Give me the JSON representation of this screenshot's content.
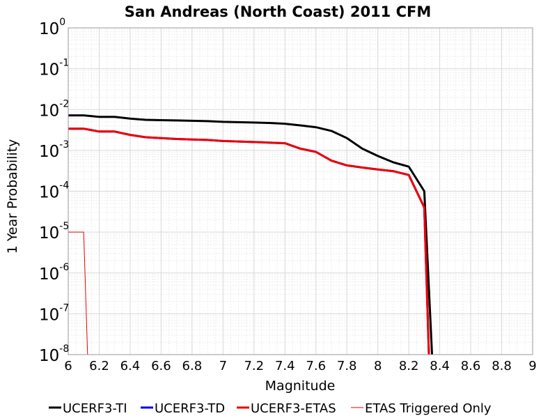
{
  "chart_data": {
    "type": "line",
    "title": "San Andreas (North Coast) 2011 CFM",
    "xlabel": "Magnitude",
    "ylabel": "1 Year Probability",
    "xlim": [
      6,
      9
    ],
    "ylim": [
      1e-08,
      1
    ],
    "yscale": "log",
    "grid": true,
    "legend_position": "bottom",
    "xticks": [
      "6",
      "6.2",
      "6.4",
      "6.6",
      "6.8",
      "7",
      "7.2",
      "7.4",
      "7.6",
      "7.8",
      "8",
      "8.2",
      "8.4",
      "8.6",
      "8.8",
      "9"
    ],
    "yticks": [
      {
        "base": "10",
        "exp": "0"
      },
      {
        "base": "10",
        "exp": "-1"
      },
      {
        "base": "10",
        "exp": "-2"
      },
      {
        "base": "10",
        "exp": "-3"
      },
      {
        "base": "10",
        "exp": "-4"
      },
      {
        "base": "10",
        "exp": "-5"
      },
      {
        "base": "10",
        "exp": "-6"
      },
      {
        "base": "10",
        "exp": "-7"
      },
      {
        "base": "10",
        "exp": "-8"
      }
    ],
    "series": [
      {
        "name": "UCERF3-TI",
        "color": "#000000",
        "width": 3,
        "x": [
          6.0,
          6.1,
          6.2,
          6.3,
          6.4,
          6.5,
          6.6,
          6.7,
          6.8,
          6.9,
          7.0,
          7.1,
          7.2,
          7.3,
          7.4,
          7.5,
          7.6,
          7.7,
          7.8,
          7.9,
          8.0,
          8.1,
          8.2,
          8.3,
          8.35
        ],
        "y": [
          0.0072,
          0.0072,
          0.0066,
          0.0066,
          0.006,
          0.0056,
          0.0055,
          0.0054,
          0.0053,
          0.0052,
          0.005,
          0.0049,
          0.0048,
          0.0047,
          0.0045,
          0.0041,
          0.0037,
          0.003,
          0.002,
          0.0011,
          0.00073,
          0.00051,
          0.0004,
          0.0001,
          1e-08
        ]
      },
      {
        "name": "UCERF3-TD",
        "color": "#0000ee",
        "width": 3,
        "x": [
          6.0,
          6.1,
          6.2,
          6.3,
          6.4,
          6.5,
          6.6,
          6.7,
          6.8,
          6.9,
          7.0,
          7.1,
          7.2,
          7.3,
          7.4,
          7.5,
          7.6,
          7.7,
          7.8,
          7.9,
          8.0,
          8.1,
          8.2,
          8.3,
          8.33
        ],
        "y": [
          0.0034,
          0.0034,
          0.0029,
          0.0029,
          0.0024,
          0.0021,
          0.002,
          0.0019,
          0.00185,
          0.0018,
          0.0017,
          0.00165,
          0.0016,
          0.00155,
          0.0015,
          0.0011,
          0.00092,
          0.00056,
          0.00043,
          0.00038,
          0.00034,
          0.00031,
          0.00025,
          4e-05,
          1e-08
        ]
      },
      {
        "name": "UCERF3-ETAS",
        "color": "#ee0000",
        "width": 3,
        "x": [
          6.0,
          6.1,
          6.2,
          6.3,
          6.4,
          6.5,
          6.6,
          6.7,
          6.8,
          6.9,
          7.0,
          7.1,
          7.2,
          7.3,
          7.4,
          7.5,
          7.6,
          7.7,
          7.8,
          7.9,
          8.0,
          8.1,
          8.2,
          8.3,
          8.33
        ],
        "y": [
          0.0034,
          0.0034,
          0.0029,
          0.0029,
          0.0024,
          0.0021,
          0.002,
          0.0019,
          0.00185,
          0.0018,
          0.0017,
          0.00165,
          0.0016,
          0.00155,
          0.0015,
          0.0011,
          0.00092,
          0.00056,
          0.00043,
          0.00038,
          0.00034,
          0.00031,
          0.00025,
          4e-05,
          1e-08
        ]
      },
      {
        "name": "ETAS Triggered Only",
        "color": "#ee0000",
        "width": 1,
        "x": [
          6.0,
          6.1,
          6.125
        ],
        "y": [
          1e-05,
          1e-05,
          1e-08
        ]
      }
    ]
  }
}
